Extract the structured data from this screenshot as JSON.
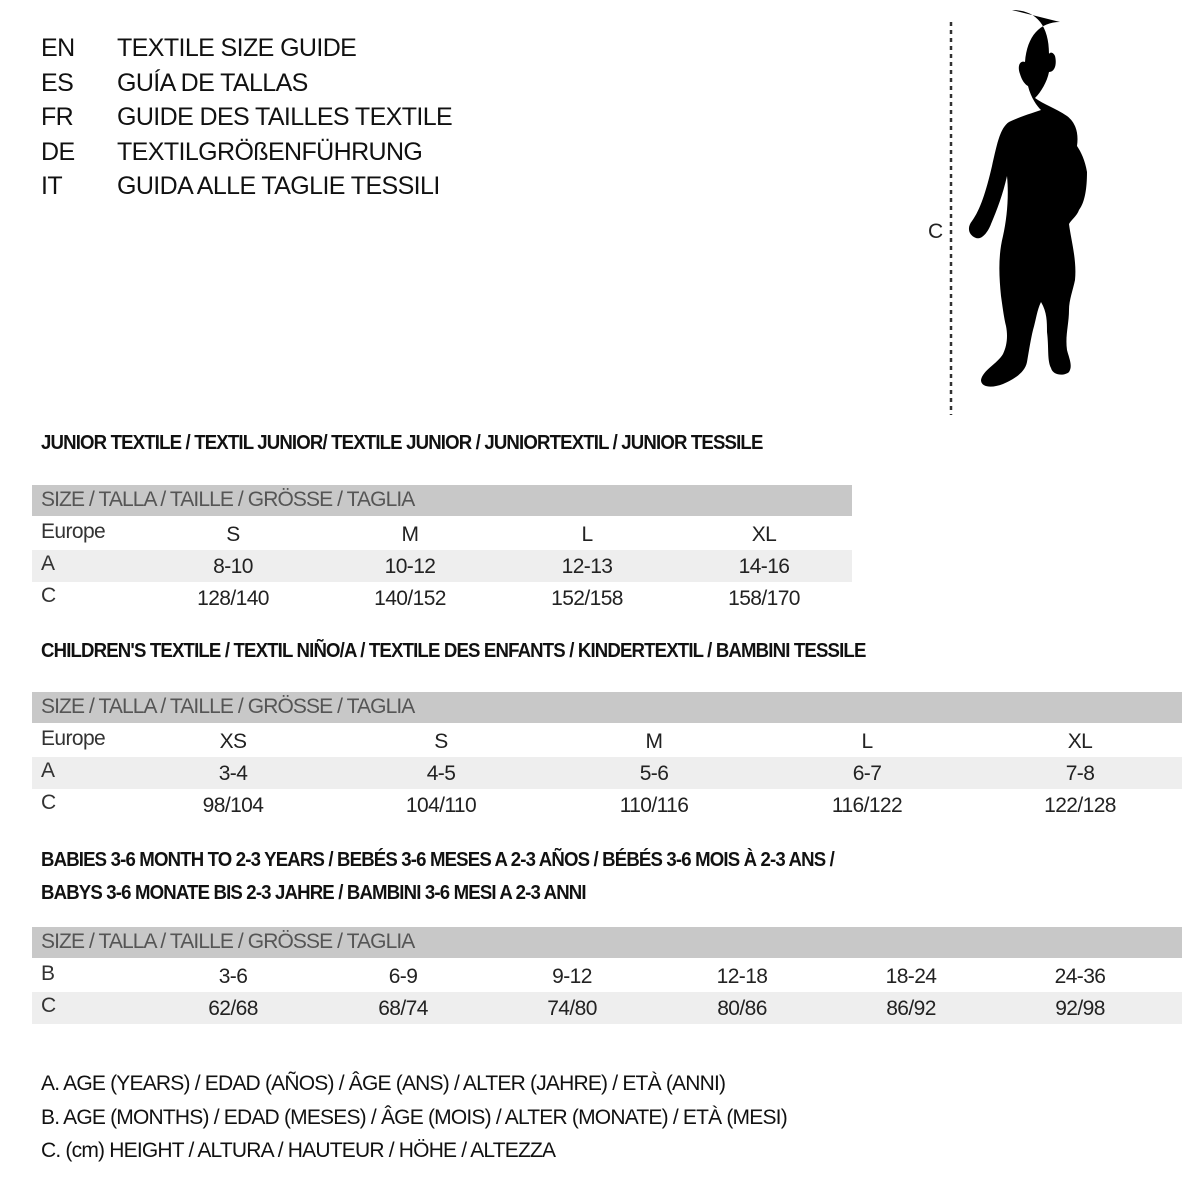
{
  "languages": [
    {
      "code": "EN",
      "title": "TEXTILE SIZE GUIDE"
    },
    {
      "code": "ES",
      "title": "GUÍA DE TALLAS"
    },
    {
      "code": "FR",
      "title": "GUIDE DES TAILLES TEXTILE"
    },
    {
      "code": "DE",
      "title": "TEXTILGRÖßENFÜHRUNG"
    },
    {
      "code": "IT",
      "title": "GUIDA ALLE TAGLIE TESSILI"
    }
  ],
  "figure": {
    "measure_label": "C",
    "icon": "child-silhouette-icon"
  },
  "colors": {
    "header_bar": "#c8c8c8",
    "shaded_row": "#eeeeee"
  },
  "sections": [
    {
      "title": "JUNIOR TEXTILE / TEXTIL JUNIOR/ TEXTILE JUNIOR / JUNIORTEXTIL / JUNIOR TESSILE",
      "title2": "",
      "header": "SIZE / TALLA / TAILLE / GRÖSSE / TAGLIA",
      "rows": [
        {
          "label": "Europe",
          "cells": [
            "S",
            "M",
            "L",
            "XL"
          ]
        },
        {
          "label": "A",
          "cells": [
            "8-10",
            "10-12",
            "12-13",
            "14-16"
          ]
        },
        {
          "label": "C",
          "cells": [
            "128/140",
            "140/152",
            "152/158",
            "158/170"
          ]
        }
      ]
    },
    {
      "title": "CHILDREN'S TEXTILE / TEXTIL NIÑO/A / TEXTILE DES ENFANTS / KINDERTEXTIL / BAMBINI TESSILE",
      "title2": "",
      "header": "SIZE / TALLA / TAILLE / GRÖSSE / TAGLIA",
      "rows": [
        {
          "label": "Europe",
          "cells": [
            "XS",
            "S",
            "M",
            "L",
            "XL"
          ]
        },
        {
          "label": "A",
          "cells": [
            "3-4",
            "4-5",
            "5-6",
            "6-7",
            "7-8"
          ]
        },
        {
          "label": "C",
          "cells": [
            "98/104",
            "104/110",
            "110/116",
            "116/122",
            "122/128"
          ]
        }
      ]
    },
    {
      "title": "BABIES 3-6 MONTH TO 2-3 YEARS / BEBÉS 3-6 MESES A 2-3 AÑOS / BÉBÉS 3-6 MOIS À 2-3 ANS /",
      "title2": "BABYS 3-6 MONATE BIS 2-3 JAHRE / BAMBINI 3-6 MESI A 2-3 ANNI",
      "header": "SIZE / TALLA / TAILLE / GRÖSSE / TAGLIA",
      "rows": [
        {
          "label": "B",
          "cells": [
            "3-6",
            "6-9",
            "9-12",
            "12-18",
            "18-24",
            "24-36"
          ]
        },
        {
          "label": "C",
          "cells": [
            "62/68",
            "68/74",
            "74/80",
            "80/86",
            "86/92",
            "92/98"
          ]
        }
      ]
    }
  ],
  "legend": [
    "A. AGE (YEARS) / EDAD (AÑOS) / ÂGE (ANS) / ALTER (JAHRE) / ETÀ (ANNI)",
    "B. AGE (MONTHS) / EDAD (MESES) / ÂGE (MOIS) / ALTER (MONATE) / ETÀ (MESI)",
    "C. (cm) HEIGHT / ALTURA / HAUTEUR / HÖHE / ALTEZZA"
  ]
}
